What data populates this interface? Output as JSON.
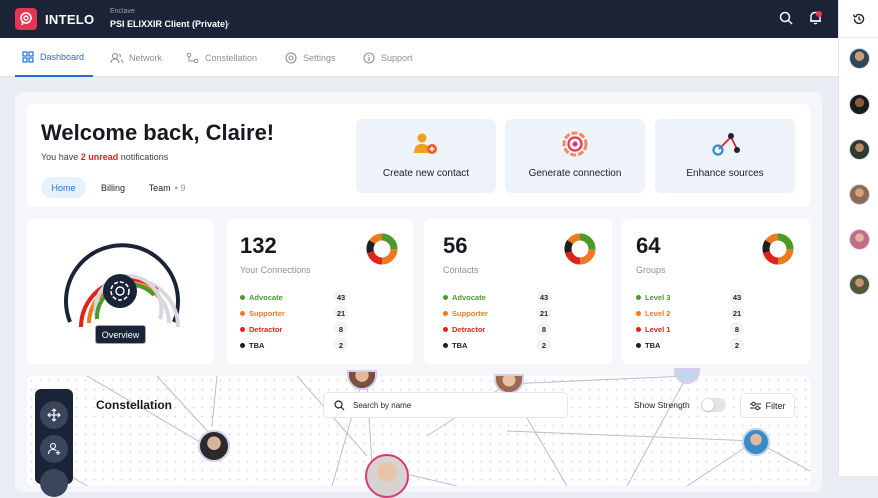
{
  "app": {
    "brand": "INTELO",
    "enclave_label": "Enclave",
    "enclave_value": "PSI ELIXXIR Client (Private)"
  },
  "nav": [
    {
      "label": "Dashboard",
      "icon": "dashboard-icon",
      "active": true
    },
    {
      "label": "Network",
      "icon": "users-icon"
    },
    {
      "label": "Constellation",
      "icon": "constellation-icon"
    },
    {
      "label": "Settings",
      "icon": "gear-icon"
    },
    {
      "label": "Support",
      "icon": "info-icon"
    }
  ],
  "welcome": {
    "title": "Welcome back, Claire!",
    "sub_prefix": "You have",
    "unread": "2 unread",
    "sub_suffix": "notifications",
    "tabs": [
      {
        "label": "Home",
        "active": true
      },
      {
        "label": "Billing"
      },
      {
        "label": "Team",
        "count": "• 9"
      }
    ]
  },
  "actions": [
    {
      "label": "Create new contact",
      "icon": "add-contact-icon"
    },
    {
      "label": "Generate connection",
      "icon": "target-icon"
    },
    {
      "label": "Enhance sources",
      "icon": "network-nodes-icon"
    }
  ],
  "overview_button": "Overview",
  "stats": [
    {
      "value": "132",
      "label": "Your Connections",
      "legend": [
        {
          "name": "Advocate",
          "value": "43",
          "color": "#4c9a2a"
        },
        {
          "name": "Supporter",
          "value": "21",
          "color": "#ee7a1f"
        },
        {
          "name": "Detractor",
          "value": "8",
          "color": "#e0231c"
        },
        {
          "name": "TBA",
          "value": "2",
          "color": "#1d1f24"
        }
      ]
    },
    {
      "value": "56",
      "label": "Contacts",
      "legend": [
        {
          "name": "Advocate",
          "value": "43",
          "color": "#4c9a2a"
        },
        {
          "name": "Supporter",
          "value": "21",
          "color": "#ee7a1f"
        },
        {
          "name": "Detractor",
          "value": "8",
          "color": "#e0231c"
        },
        {
          "name": "TBA",
          "value": "2",
          "color": "#1d1f24"
        }
      ]
    },
    {
      "value": "64",
      "label": "Groups",
      "legend": [
        {
          "name": "Level 3",
          "value": "43",
          "color": "#4c9a2a"
        },
        {
          "name": "Level 2",
          "value": "21",
          "color": "#ee7a1f"
        },
        {
          "name": "Level 1",
          "value": "8",
          "color": "#e0231c"
        },
        {
          "name": "TBA",
          "value": "2",
          "color": "#1d1f24"
        }
      ]
    }
  ],
  "constellation": {
    "title": "Constellation",
    "search_placeholder": "Search by name",
    "show_strength": "Show Strength",
    "filter": "Filter"
  }
}
